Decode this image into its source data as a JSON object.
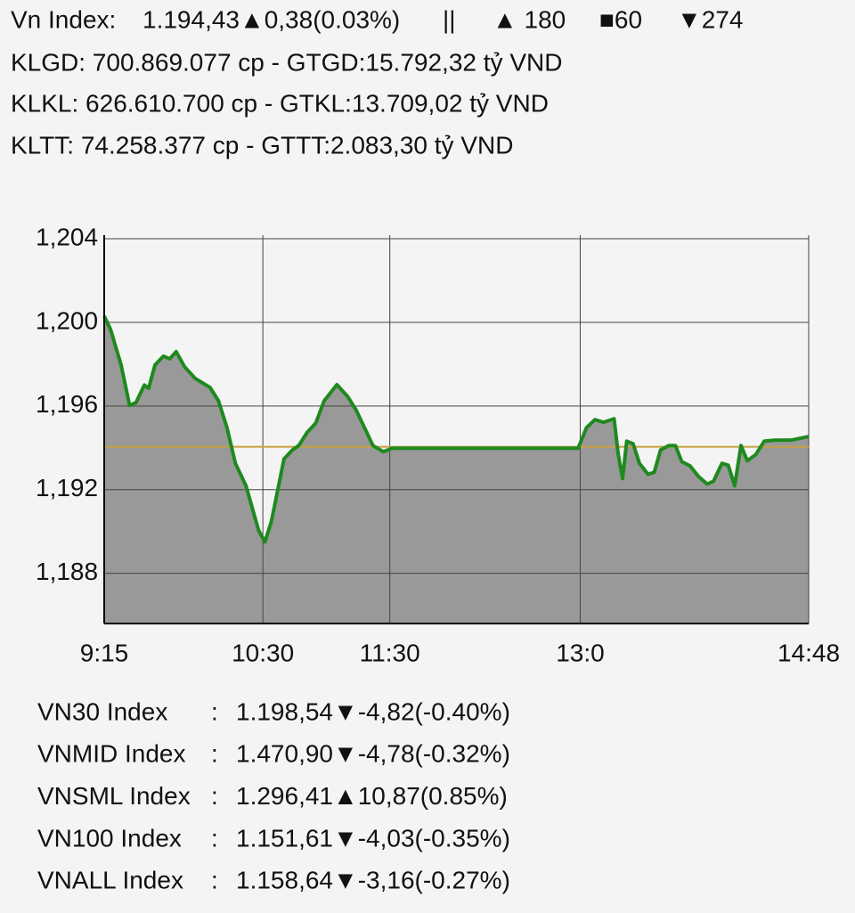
{
  "header": {
    "index_label": "Vn Index:",
    "index_value": "1.194,43▲0,38(0.03%)",
    "index_color": "#2a8a2a",
    "separator": "||",
    "advances": "▲ 180",
    "advances_color": "#2a8a2a",
    "unchanged": "■60",
    "unchanged_color": "#f0a020",
    "declines": "▼274",
    "declines_color": "#e8141c",
    "lines": [
      "KLGD: 700.869.077 cp - GTGD:15.792,32 tỷ VND",
      "KLKL: 626.610.700 cp - GTKL:13.709,02 tỷ VND",
      "KLTT: 74.258.377 cp - GTTT:2.083,30 tỷ VND"
    ]
  },
  "chart_data": {
    "type": "area",
    "color": "#1e8a1e",
    "fill": "#999999",
    "reference": 1194.05,
    "reference_color": "#c8a040",
    "grid": true,
    "x": [
      555,
      558,
      563,
      567,
      570,
      574,
      576,
      579,
      583,
      586,
      589,
      593,
      598,
      605,
      609,
      613,
      617,
      622,
      625,
      628,
      631,
      634,
      637,
      640,
      644,
      647,
      651,
      655,
      659,
      665,
      670,
      674,
      678,
      682,
      687,
      691,
      779,
      783,
      787,
      791,
      796,
      798,
      800,
      802,
      805,
      808,
      812,
      815,
      818,
      822,
      825,
      828,
      832,
      836,
      840,
      843,
      847,
      850,
      853,
      856,
      859,
      863,
      867,
      872,
      880,
      888
    ],
    "values": [
      1200.3,
      1199.67,
      1197.96,
      1196.03,
      1196.16,
      1197.0,
      1196.85,
      1197.96,
      1198.38,
      1198.26,
      1198.6,
      1197.87,
      1197.32,
      1196.89,
      1196.25,
      1194.97,
      1193.26,
      1192.19,
      1191.12,
      1190.05,
      1189.5,
      1190.48,
      1191.97,
      1193.47,
      1193.9,
      1194.11,
      1194.75,
      1195.18,
      1196.25,
      1197.02,
      1196.46,
      1195.82,
      1194.97,
      1194.11,
      1193.81,
      1193.98,
      1193.98,
      1194.97,
      1195.35,
      1195.22,
      1195.39,
      1193.68,
      1192.53,
      1194.32,
      1194.2,
      1193.26,
      1192.74,
      1192.83,
      1193.9,
      1194.11,
      1194.11,
      1193.34,
      1193.13,
      1192.62,
      1192.27,
      1192.4,
      1193.26,
      1193.17,
      1192.19,
      1194.11,
      1193.38,
      1193.68,
      1194.32,
      1194.37,
      1194.37,
      1194.54
    ],
    "xlim": [
      555,
      888
    ],
    "xticks": [
      {
        "value": 555,
        "label": "9:15"
      },
      {
        "value": 630,
        "label": "10:30"
      },
      {
        "value": 690,
        "label": "11:30"
      },
      {
        "value": 780,
        "label": "13:0"
      },
      {
        "value": 888,
        "label": "14:48"
      }
    ],
    "ylim": [
      1185.6,
      1204
    ],
    "yticks": [
      {
        "value": 1204,
        "label": "1,204"
      },
      {
        "value": 1200,
        "label": "1,200"
      },
      {
        "value": 1196,
        "label": "1,196"
      },
      {
        "value": 1192,
        "label": "1,192"
      },
      {
        "value": 1188,
        "label": "1,188"
      }
    ]
  },
  "indices_separator": ":",
  "indices": [
    {
      "name": "VN30 Index",
      "value": "1.198,54▼-4,82(-0.40%)",
      "color": "#e8141c"
    },
    {
      "name": "VNMID Index",
      "value": "1.470,90▼-4,78(-0.32%)",
      "color": "#e8141c"
    },
    {
      "name": "VNSML Index",
      "value": "1.296,41▲10,87(0.85%)",
      "color": "#2a8a2a"
    },
    {
      "name": "VN100 Index",
      "value": "1.151,61▼-4,03(-0.35%)",
      "color": "#e8141c"
    },
    {
      "name": "VNALL Index",
      "value": "1.158,64▼-3,16(-0.27%)",
      "color": "#e8141c"
    }
  ]
}
